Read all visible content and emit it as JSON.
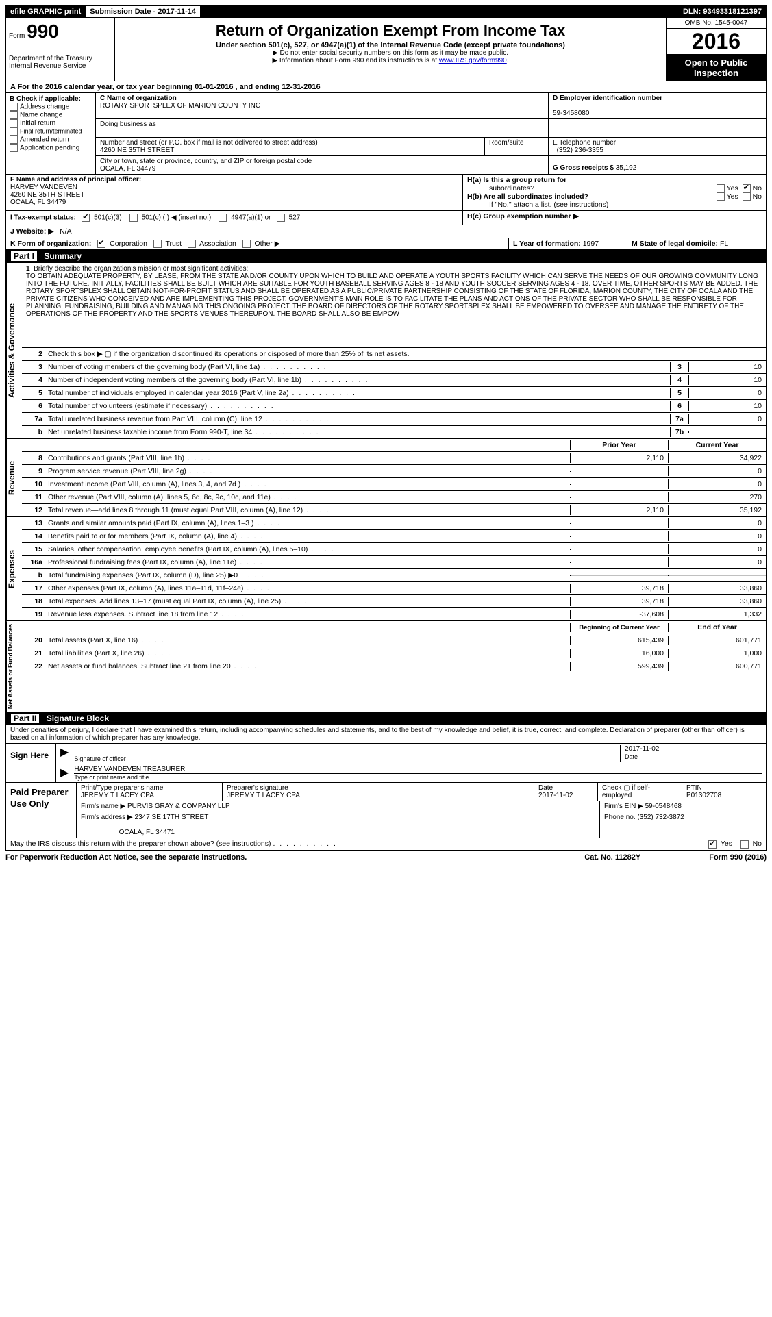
{
  "top": {
    "efile": "efile GRAPHIC print",
    "submission_label": "Submission Date - ",
    "submission_date": "2017-11-14",
    "dln_label": "DLN: ",
    "dln": "93493318121397"
  },
  "header": {
    "form_prefix": "Form",
    "form_no": "990",
    "dept1": "Department of the Treasury",
    "dept2": "Internal Revenue Service",
    "title": "Return of Organization Exempt From Income Tax",
    "subtitle": "Under section 501(c), 527, or 4947(a)(1) of the Internal Revenue Code (except private foundations)",
    "note1": "▶ Do not enter social security numbers on this form as it may be made public.",
    "note2_pre": "▶ Information about Form 990 and its instructions is at ",
    "note2_link": "www.IRS.gov/form990",
    "omb": "OMB No. 1545-0047",
    "year": "2016",
    "open1": "Open to Public",
    "open2": "Inspection"
  },
  "rowA": "A  For the 2016 calendar year, or tax year beginning 01-01-2016   , and ending 12-31-2016",
  "colB": {
    "title": "B Check if applicable:",
    "opts": [
      "Address change",
      "Name change",
      "Initial return",
      "Final return/terminated",
      "Amended return",
      "Application pending"
    ]
  },
  "colC": {
    "name_lbl": "C Name of organization",
    "name": "ROTARY SPORTSPLEX OF MARION COUNTY INC",
    "dba_lbl": "Doing business as",
    "dba": "",
    "street_lbl": "Number and street (or P.O. box if mail is not delivered to street address)",
    "room_lbl": "Room/suite",
    "street": "4260 NE 35TH STREET",
    "city_lbl": "City or town, state or province, country, and ZIP or foreign postal code",
    "city": "OCALA, FL  34479",
    "officer_lbl": "F  Name and address of principal officer:",
    "officer_name": "HARVEY VANDEVEN",
    "officer_street": "4260 NE 35TH STREET",
    "officer_city": "OCALA, FL  34479"
  },
  "colD": {
    "ein_lbl": "D Employer identification number",
    "ein": "59-3458080",
    "tel_lbl": "E Telephone number",
    "tel": "(352) 236-3355",
    "gross_lbl": "G Gross receipts $ ",
    "gross": "35,192",
    "ha_lbl": "H(a)  Is this a group return for",
    "ha_sub": "subordinates?",
    "hb_lbl": "H(b)  Are all subordinates included?",
    "hb_note": "If \"No,\" attach a list. (see instructions)",
    "hc_lbl": "H(c)  Group exemption number ▶",
    "yes": "Yes",
    "no": "No"
  },
  "rowI": {
    "lbl": "I  Tax-exempt status:",
    "opt1": "501(c)(3)",
    "opt2": "501(c) (   ) ◀ (insert no.)",
    "opt3": "4947(a)(1) or",
    "opt4": "527"
  },
  "rowJ": {
    "lbl": "J  Website: ▶",
    "val": "N/A"
  },
  "rowK": {
    "lbl": "K Form of organization:",
    "opts": [
      "Corporation",
      "Trust",
      "Association",
      "Other ▶"
    ],
    "L_lbl": "L Year of formation: ",
    "L_val": "1997",
    "M_lbl": "M State of legal domicile: ",
    "M_val": "FL"
  },
  "part1": {
    "label": "Part I",
    "title": "Summary"
  },
  "mission": {
    "num": "1",
    "lbl": "Briefly describe the organization's mission or most significant activities:",
    "text": "TO OBTAIN ADEQUATE PROPERTY, BY LEASE, FROM THE STATE AND/OR COUNTY UPON WHICH TO BUILD AND OPERATE A YOUTH SPORTS FACILITY WHICH CAN SERVE THE NEEDS OF OUR GROWING COMMUNITY LONG INTO THE FUTURE. INITIALLY, FACILITIES SHALL BE BUILT WHICH ARE SUITABLE FOR YOUTH BASEBALL SERVING AGES 8 - 18 AND YOUTH SOCCER SERVING AGES 4 - 18. OVER TIME, OTHER SPORTS MAY BE ADDED. THE ROTARY SPORTSPLEX SHALL OBTAIN NOT-FOR-PROFIT STATUS AND SHALL BE OPERATED AS A PUBLIC/PRIVATE PARTNERSHIP CONSISTING OF THE STATE OF FLORIDA, MARION COUNTY, THE CITY OF OCALA AND THE PRIVATE CITIZENS WHO CONCEIVED AND ARE IMPLEMENTING THIS PROJECT. GOVERNMENT'S MAIN ROLE IS TO FACILITATE THE PLANS AND ACTIONS OF THE PRIVATE SECTOR WHO SHALL BE RESPONSIBLE FOR PLANNING, FUNDRAISING, BUILDING AND MANAGING THIS ONGOING PROJECT. THE BOARD OF DIRECTORS OF THE ROTARY SPORTSPLEX SHALL BE EMPOWERED TO OVERSEE AND MANAGE THE ENTIRETY OF THE OPERATIONS OF THE PROPERTY AND THE SPORTS VENUES THEREUPON. THE BOARD SHALL ALSO BE EMPOW"
  },
  "governance_lines": [
    {
      "n": "2",
      "d": "Check this box ▶ ▢  if the organization discontinued its operations or disposed of more than 25% of its net assets."
    },
    {
      "n": "3",
      "d": "Number of voting members of the governing body (Part VI, line 1a)",
      "b": "3",
      "v": "10"
    },
    {
      "n": "4",
      "d": "Number of independent voting members of the governing body (Part VI, line 1b)",
      "b": "4",
      "v": "10"
    },
    {
      "n": "5",
      "d": "Total number of individuals employed in calendar year 2016 (Part V, line 2a)",
      "b": "5",
      "v": "0"
    },
    {
      "n": "6",
      "d": "Total number of volunteers (estimate if necessary)",
      "b": "6",
      "v": "10"
    },
    {
      "n": "7a",
      "d": "Total unrelated business revenue from Part VIII, column (C), line 12",
      "b": "7a",
      "v": "0"
    },
    {
      "n": "b",
      "d": "Net unrelated business taxable income from Form 990-T, line 34",
      "b": "7b",
      "v": ""
    }
  ],
  "col_headers": {
    "py": "Prior Year",
    "cy": "Current Year"
  },
  "revenue_lines": [
    {
      "n": "8",
      "d": "Contributions and grants (Part VIII, line 1h)",
      "py": "2,110",
      "cy": "34,922"
    },
    {
      "n": "9",
      "d": "Program service revenue (Part VIII, line 2g)",
      "py": "",
      "cy": "0"
    },
    {
      "n": "10",
      "d": "Investment income (Part VIII, column (A), lines 3, 4, and 7d )",
      "py": "",
      "cy": "0"
    },
    {
      "n": "11",
      "d": "Other revenue (Part VIII, column (A), lines 5, 6d, 8c, 9c, 10c, and 11e)",
      "py": "",
      "cy": "270"
    },
    {
      "n": "12",
      "d": "Total revenue—add lines 8 through 11 (must equal Part VIII, column (A), line 12)",
      "py": "2,110",
      "cy": "35,192"
    }
  ],
  "expense_lines": [
    {
      "n": "13",
      "d": "Grants and similar amounts paid (Part IX, column (A), lines 1–3 )",
      "py": "",
      "cy": "0"
    },
    {
      "n": "14",
      "d": "Benefits paid to or for members (Part IX, column (A), line 4)",
      "py": "",
      "cy": "0"
    },
    {
      "n": "15",
      "d": "Salaries, other compensation, employee benefits (Part IX, column (A), lines 5–10)",
      "py": "",
      "cy": "0"
    },
    {
      "n": "16a",
      "d": "Professional fundraising fees (Part IX, column (A), line 11e)",
      "py": "",
      "cy": "0"
    },
    {
      "n": "b",
      "d": "Total fundraising expenses (Part IX, column (D), line 25) ▶0",
      "py": "GREY",
      "cy": "GREY"
    },
    {
      "n": "17",
      "d": "Other expenses (Part IX, column (A), lines 11a–11d, 11f–24e)",
      "py": "39,718",
      "cy": "33,860"
    },
    {
      "n": "18",
      "d": "Total expenses. Add lines 13–17 (must equal Part IX, column (A), line 25)",
      "py": "39,718",
      "cy": "33,860"
    },
    {
      "n": "19",
      "d": "Revenue less expenses. Subtract line 18 from line 12",
      "py": "-37,608",
      "cy": "1,332"
    }
  ],
  "net_headers": {
    "py": "Beginning of Current Year",
    "cy": "End of Year"
  },
  "net_lines": [
    {
      "n": "20",
      "d": "Total assets (Part X, line 16)",
      "py": "615,439",
      "cy": "601,771"
    },
    {
      "n": "21",
      "d": "Total liabilities (Part X, line 26)",
      "py": "16,000",
      "cy": "1,000"
    },
    {
      "n": "22",
      "d": "Net assets or fund balances. Subtract line 21 from line 20",
      "py": "599,439",
      "cy": "600,771"
    }
  ],
  "side_labels": {
    "gov": "Activities & Governance",
    "rev": "Revenue",
    "exp": "Expenses",
    "net": "Net Assets or Fund Balances"
  },
  "part2": {
    "label": "Part II",
    "title": "Signature Block"
  },
  "sig": {
    "intro": "Under penalties of perjury, I declare that I have examined this return, including accompanying schedules and statements, and to the best of my knowledge and belief, it is true, correct, and complete. Declaration of preparer (other than officer) is based on all information of which preparer has any knowledge.",
    "sign_here": "Sign Here",
    "sig_officer_lbl": "Signature of officer",
    "date_lbl": "Date",
    "sig_date": "2017-11-02",
    "name_title": "HARVEY VANDEVEN  TREASURER",
    "name_title_lbl": "Type or print name and title"
  },
  "prep": {
    "title": "Paid Preparer Use Only",
    "name_lbl": "Print/Type preparer's name",
    "name": "JEREMY T LACEY CPA",
    "sig_lbl": "Preparer's signature",
    "sig": "JEREMY T LACEY CPA",
    "date_lbl": "Date",
    "date": "2017-11-02",
    "check_lbl": "Check ▢ if self-employed",
    "ptin_lbl": "PTIN",
    "ptin": "P01302708",
    "firm_name_lbl": "Firm's name      ▶ ",
    "firm_name": "PURVIS GRAY & COMPANY LLP",
    "firm_ein_lbl": "Firm's EIN ▶ ",
    "firm_ein": "59-0548468",
    "firm_addr_lbl": "Firm's address ▶ ",
    "firm_addr1": "2347 SE 17TH STREET",
    "firm_addr2": "OCALA, FL  34471",
    "phone_lbl": "Phone no. ",
    "phone": "(352) 732-3872"
  },
  "discuss": {
    "q": "May the IRS discuss this return with the preparer shown above? (see instructions)",
    "yes": "Yes",
    "no": "No"
  },
  "footer": {
    "left": "For Paperwork Reduction Act Notice, see the separate instructions.",
    "mid": "Cat. No. 11282Y",
    "right": "Form 990 (2016)"
  }
}
